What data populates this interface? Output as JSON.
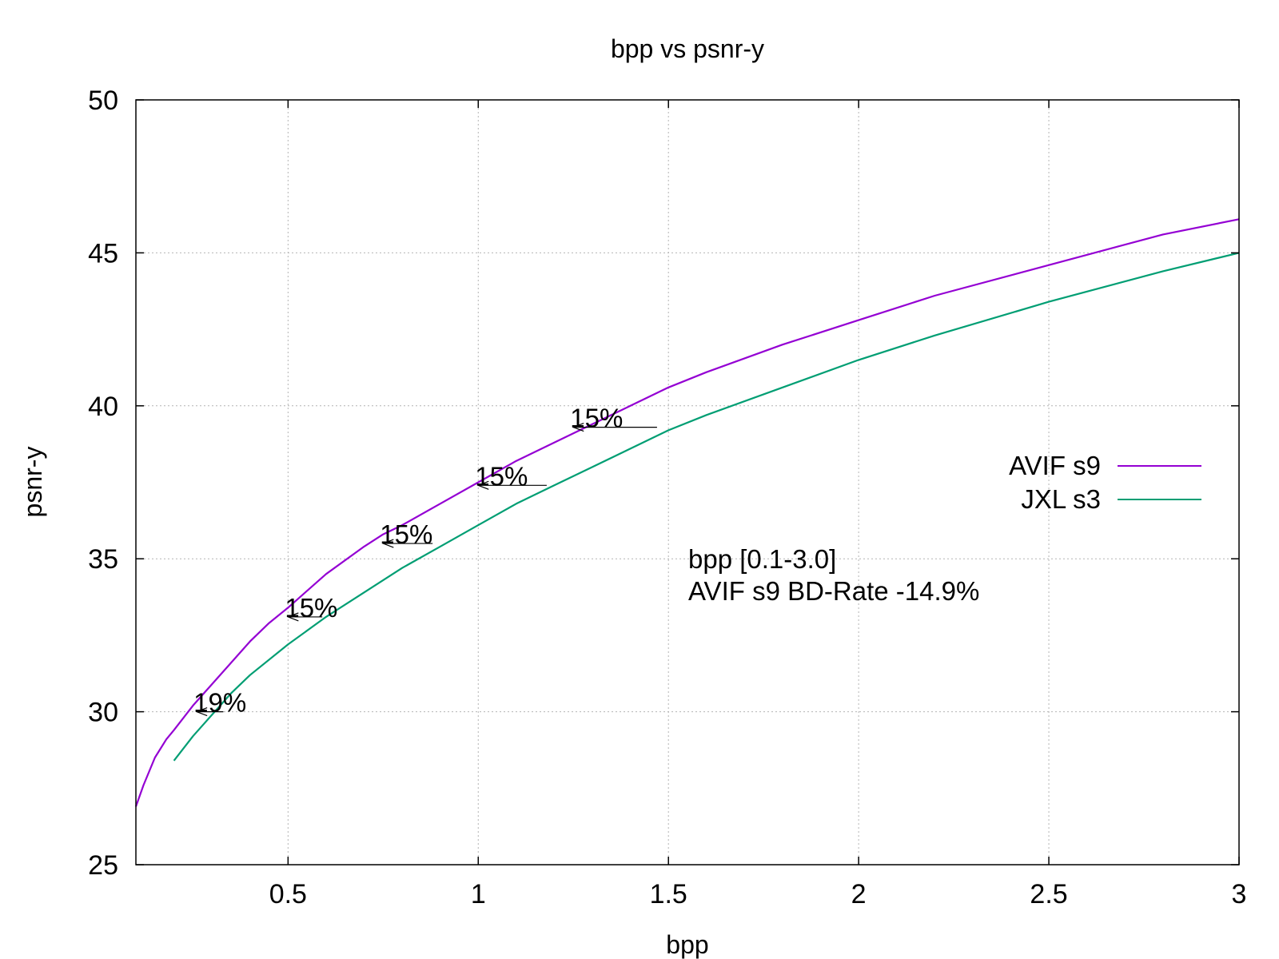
{
  "chart_data": {
    "type": "line",
    "title": "bpp vs psnr-y",
    "xlabel": "bpp",
    "ylabel": "psnr-y",
    "xlim": [
      0.1,
      3.0
    ],
    "ylim": [
      25,
      50
    ],
    "grid": true,
    "legend_position": "right",
    "x_ticks": [
      0.5,
      1,
      1.5,
      2,
      2.5,
      3
    ],
    "x_tick_labels": [
      "0.5",
      "1",
      "1.5",
      "2",
      "2.5",
      "3"
    ],
    "y_ticks": [
      25,
      30,
      35,
      40,
      45,
      50
    ],
    "y_tick_labels": [
      "25",
      "30",
      "35",
      "40",
      "45",
      "50"
    ],
    "series": [
      {
        "name": "AVIF s9",
        "color": "#9400d3",
        "x": [
          0.1,
          0.12,
          0.15,
          0.18,
          0.2,
          0.25,
          0.3,
          0.35,
          0.4,
          0.45,
          0.5,
          0.6,
          0.7,
          0.75,
          0.8,
          0.9,
          1.0,
          1.1,
          1.2,
          1.25,
          1.3,
          1.4,
          1.5,
          1.6,
          1.8,
          2.0,
          2.2,
          2.5,
          2.8,
          3.0
        ],
        "y": [
          26.9,
          27.6,
          28.5,
          29.1,
          29.4,
          30.2,
          30.9,
          31.6,
          32.3,
          32.9,
          33.4,
          34.5,
          35.4,
          35.8,
          36.1,
          36.8,
          37.5,
          38.2,
          38.8,
          39.1,
          39.4,
          40.0,
          40.6,
          41.1,
          42.0,
          42.8,
          43.6,
          44.6,
          45.6,
          46.1
        ]
      },
      {
        "name": "JXL s3",
        "color": "#009e73",
        "x": [
          0.2,
          0.25,
          0.3,
          0.35,
          0.4,
          0.5,
          0.6,
          0.7,
          0.8,
          0.9,
          1.0,
          1.1,
          1.2,
          1.3,
          1.4,
          1.5,
          1.6,
          1.8,
          2.0,
          2.2,
          2.5,
          2.8,
          3.0
        ],
        "y": [
          28.4,
          29.2,
          29.9,
          30.6,
          31.2,
          32.2,
          33.1,
          33.9,
          34.7,
          35.4,
          36.1,
          36.8,
          37.4,
          38.0,
          38.6,
          39.2,
          39.7,
          40.6,
          41.5,
          42.3,
          43.4,
          44.4,
          45.0
        ]
      }
    ],
    "annotations": [
      {
        "label": "19%",
        "x_from": 0.33,
        "x_to": 0.26,
        "y": 30.0
      },
      {
        "label": "15%",
        "x_from": 0.59,
        "x_to": 0.5,
        "y": 33.1
      },
      {
        "label": "15%",
        "x_from": 0.88,
        "x_to": 0.75,
        "y": 35.5
      },
      {
        "label": "15%",
        "x_from": 1.18,
        "x_to": 1.0,
        "y": 37.4
      },
      {
        "label": "15%",
        "x_from": 1.47,
        "x_to": 1.25,
        "y": 39.3
      }
    ],
    "note": {
      "lines": [
        "bpp [0.1-3.0]",
        "AVIF s9 BD-Rate -14.9%"
      ],
      "color": "#00ff00"
    }
  }
}
